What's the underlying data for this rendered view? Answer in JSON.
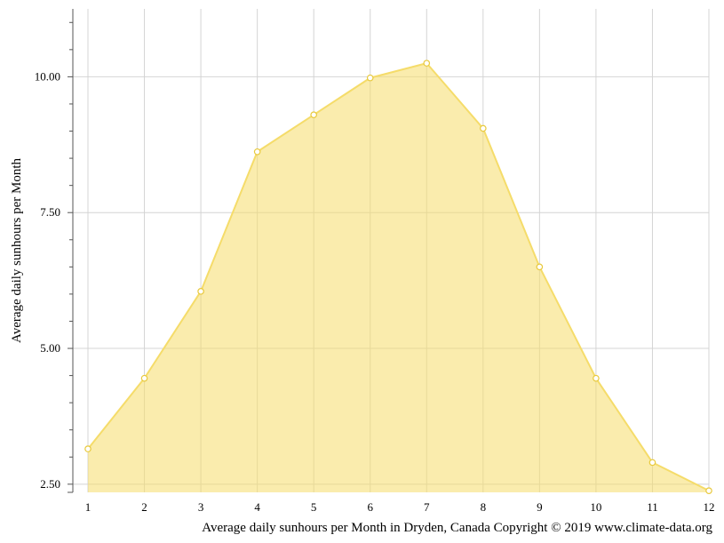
{
  "chart_data": {
    "type": "area",
    "title": "",
    "xlabel": "Average daily sunhours per Month in Dryden, Canada Copyright © 2019 www.climate-data.org",
    "ylabel": "Average daily sunhours per Month",
    "x": [
      1,
      2,
      3,
      4,
      5,
      6,
      7,
      8,
      9,
      10,
      11,
      12
    ],
    "x_tick_labels": [
      "1",
      "2",
      "3",
      "4",
      "5",
      "6",
      "7",
      "8",
      "9",
      "10",
      "11",
      "12"
    ],
    "y_tick_labels": [
      "2.50",
      "5.00",
      "7.50",
      "10.00"
    ],
    "y_ticks": [
      2.5,
      5.0,
      7.5,
      10.0
    ],
    "xlim": [
      1,
      12
    ],
    "ylim": [
      2.35,
      11.25
    ],
    "grid": true,
    "series": [
      {
        "values": [
          3.15,
          4.45,
          6.05,
          8.62,
          9.3,
          9.98,
          10.25,
          9.05,
          6.5,
          4.45,
          2.9,
          2.38
        ],
        "color": "#f5dc6a"
      }
    ]
  }
}
